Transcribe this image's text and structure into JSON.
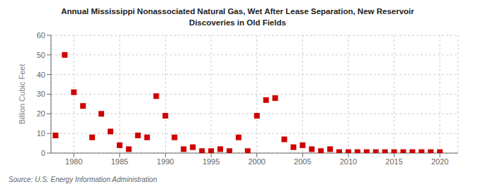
{
  "chart_data": {
    "type": "scatter",
    "title": "Annual Mississippi Nonassociated Natural Gas, Wet After Lease Separation, New Reservoir\nDiscoveries in Old Fields",
    "ylabel": "Billion Cubic Feet",
    "annotation": "Source: U.S. Energy Information Administration",
    "color": "#cc0000",
    "marker": "square",
    "grid": true,
    "xlim": [
      1977.5,
      2022
    ],
    "ylim": [
      0,
      60
    ],
    "xticks": [
      1980,
      1985,
      1990,
      1995,
      2000,
      2005,
      2010,
      2015,
      2020
    ],
    "yticks": [
      0,
      10,
      20,
      30,
      40,
      50,
      60
    ],
    "x": [
      1978,
      1979,
      1980,
      1981,
      1982,
      1983,
      1984,
      1985,
      1986,
      1987,
      1988,
      1989,
      1990,
      1991,
      1992,
      1993,
      1994,
      1995,
      1996,
      1997,
      1998,
      1999,
      2000,
      2001,
      2002,
      2003,
      2004,
      2005,
      2006,
      2007,
      2008,
      2009,
      2010,
      2011,
      2012,
      2013,
      2014,
      2015,
      2016,
      2017,
      2018,
      2019,
      2020
    ],
    "values": [
      9,
      50,
      31,
      24,
      8,
      20,
      11,
      4,
      2,
      9,
      8,
      29,
      19,
      8,
      2,
      3,
      1,
      1,
      2,
      1,
      8,
      1,
      19,
      27,
      28,
      7,
      3,
      4,
      2,
      1,
      2,
      0.5,
      0.5,
      0.5,
      0.5,
      0.5,
      0.5,
      0.5,
      0.5,
      0.5,
      0.5,
      0.5,
      0.5
    ]
  }
}
